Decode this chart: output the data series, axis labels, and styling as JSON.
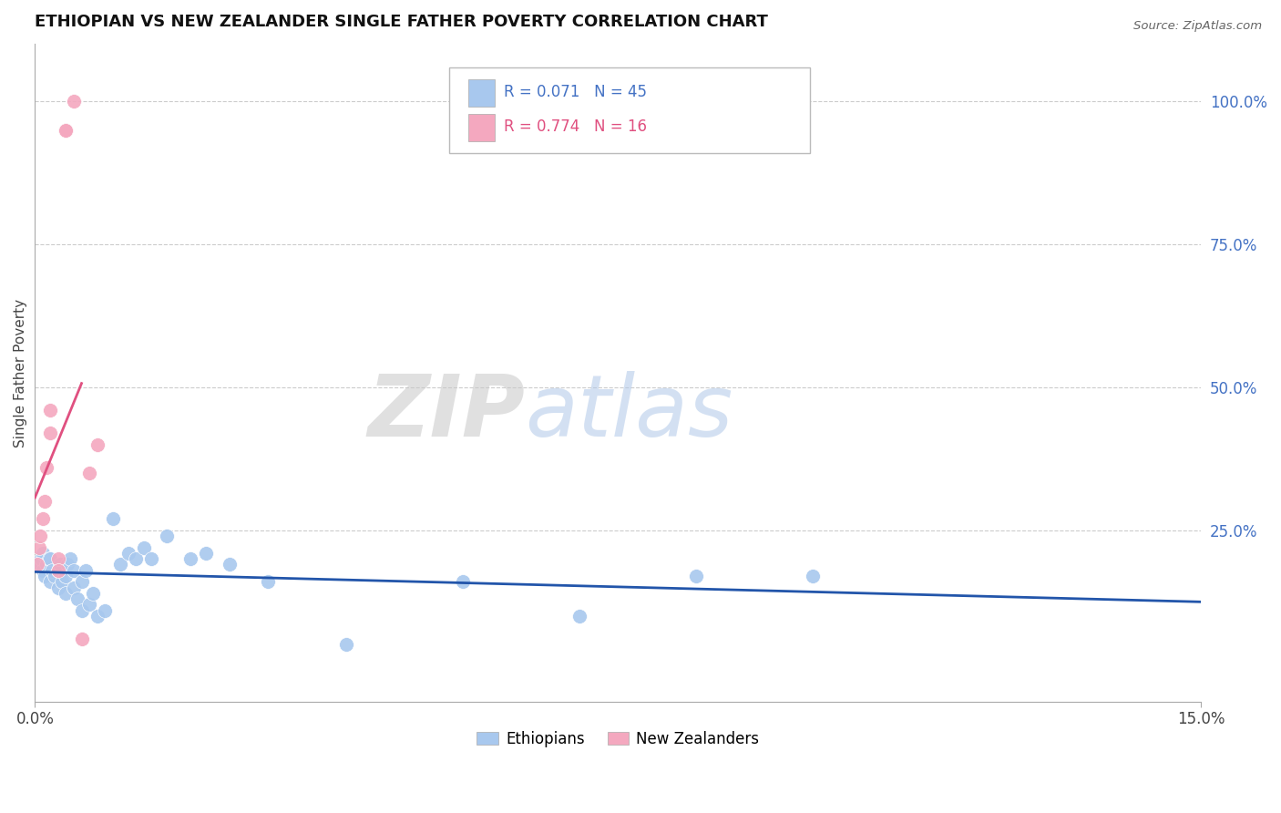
{
  "title": "ETHIOPIAN VS NEW ZEALANDER SINGLE FATHER POVERTY CORRELATION CHART",
  "source": "Source: ZipAtlas.com",
  "ylabel": "Single Father Poverty",
  "y_tick_right_labels": [
    "25.0%",
    "50.0%",
    "75.0%",
    "100.0%"
  ],
  "y_tick_right_values": [
    0.25,
    0.5,
    0.75,
    1.0
  ],
  "xlim": [
    0.0,
    0.15
  ],
  "ylim": [
    -0.05,
    1.1
  ],
  "r_ethiopian": 0.071,
  "n_ethiopian": 45,
  "r_nz": 0.774,
  "n_nz": 16,
  "color_ethiopian": "#A8C8EE",
  "color_nz": "#F4A8BF",
  "color_trend_ethiopian": "#2255AA",
  "color_trend_nz": "#E05080",
  "watermark_zip": "ZIP",
  "watermark_atlas": "atlas",
  "legend_ethiopians": "Ethiopians",
  "legend_nz": "New Zealanders",
  "ethiopian_x": [
    0.0005,
    0.0008,
    0.001,
    0.001,
    0.0012,
    0.0015,
    0.0018,
    0.002,
    0.002,
    0.0022,
    0.0025,
    0.003,
    0.003,
    0.0032,
    0.0035,
    0.004,
    0.004,
    0.0042,
    0.0045,
    0.005,
    0.005,
    0.0055,
    0.006,
    0.006,
    0.0065,
    0.007,
    0.0075,
    0.008,
    0.009,
    0.01,
    0.011,
    0.012,
    0.013,
    0.014,
    0.015,
    0.017,
    0.02,
    0.022,
    0.025,
    0.03,
    0.04,
    0.055,
    0.07,
    0.085,
    0.1
  ],
  "ethiopian_y": [
    0.19,
    0.2,
    0.18,
    0.21,
    0.17,
    0.19,
    0.2,
    0.16,
    0.2,
    0.18,
    0.17,
    0.15,
    0.18,
    0.19,
    0.16,
    0.14,
    0.17,
    0.19,
    0.2,
    0.15,
    0.18,
    0.13,
    0.11,
    0.16,
    0.18,
    0.12,
    0.14,
    0.1,
    0.11,
    0.27,
    0.19,
    0.21,
    0.2,
    0.22,
    0.2,
    0.24,
    0.2,
    0.21,
    0.19,
    0.16,
    0.05,
    0.16,
    0.1,
    0.17,
    0.17
  ],
  "nz_x": [
    0.0003,
    0.0005,
    0.0007,
    0.001,
    0.0012,
    0.0015,
    0.002,
    0.002,
    0.003,
    0.003,
    0.004,
    0.004,
    0.005,
    0.006,
    0.007,
    0.008
  ],
  "nz_y": [
    0.19,
    0.22,
    0.24,
    0.27,
    0.3,
    0.36,
    0.42,
    0.46,
    0.2,
    0.18,
    0.95,
    0.95,
    1.0,
    0.06,
    0.35,
    0.4
  ],
  "nz_trend_x0": 0.0,
  "nz_trend_x1": 0.006,
  "eth_trend_x0": 0.0,
  "eth_trend_x1": 0.15
}
